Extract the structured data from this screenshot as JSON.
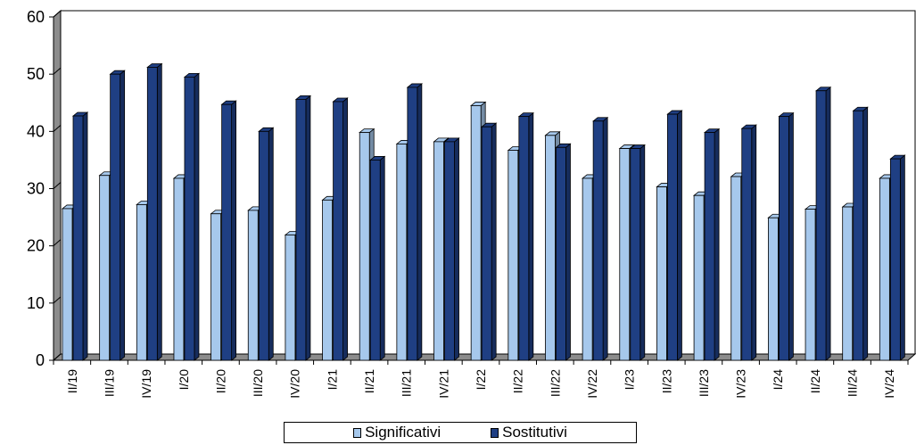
{
  "chart_data": {
    "type": "bar",
    "style": "3d-clustered-column",
    "categories": [
      "II/19",
      "III/19",
      "IV/19",
      "I/20",
      "II/20",
      "III/20",
      "IV/20",
      "I/21",
      "II/21",
      "III/21",
      "IV/21",
      "I/22",
      "II/22",
      "III/22",
      "IV/22",
      "I/23",
      "II/23",
      "III/23",
      "IV/23",
      "I/24",
      "II/24",
      "III/24",
      "IV/24"
    ],
    "series": [
      {
        "name": "Significativi",
        "color": "#a6c8ec",
        "values": [
          26.5,
          32.3,
          27.2,
          31.8,
          25.6,
          26.2,
          21.9,
          28.0,
          39.8,
          37.8,
          38.2,
          44.5,
          36.7,
          39.3,
          31.8,
          37.0,
          30.3,
          28.8,
          32.1,
          24.9,
          26.4,
          26.8,
          31.8
        ]
      },
      {
        "name": "Sostitutivi",
        "color": "#1f3f83",
        "values": [
          42.7,
          50.0,
          51.2,
          49.5,
          44.7,
          40.0,
          45.6,
          45.2,
          35.0,
          47.7,
          38.2,
          40.8,
          42.6,
          37.2,
          41.8,
          37.0,
          43.0,
          39.8,
          40.5,
          42.6,
          47.1,
          43.6,
          35.2
        ]
      }
    ],
    "ylim": [
      0,
      60
    ],
    "yticks": [
      0,
      10,
      20,
      30,
      40,
      50,
      60
    ],
    "grid": false,
    "legend_position": "bottom",
    "title": "",
    "xlabel": "",
    "ylabel": ""
  }
}
